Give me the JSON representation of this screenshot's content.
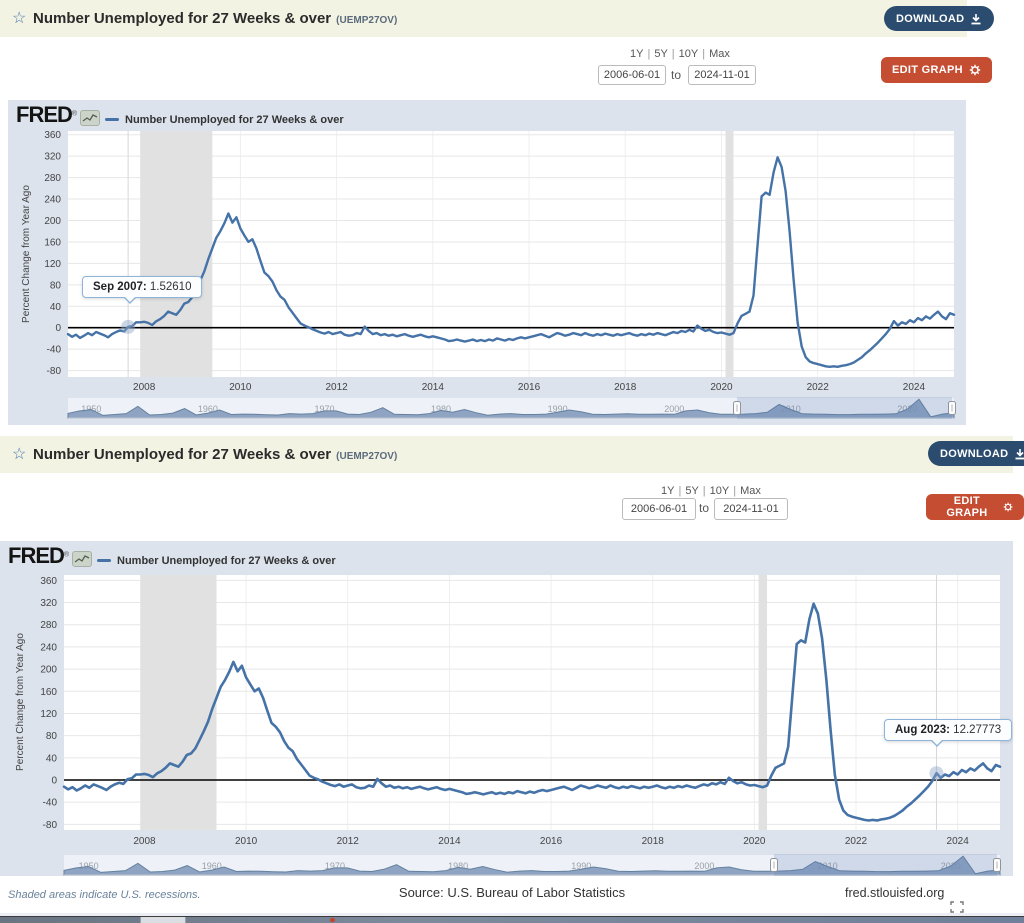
{
  "ui": {
    "sep": "|",
    "to_label": "to"
  },
  "panel1": {
    "title": "Number Unemployed for 27 Weeks & over",
    "code": "(UEMP27OV)",
    "download_label": "DOWNLOAD",
    "edit_label": "EDIT GRAPH",
    "range_links": [
      "1Y",
      "5Y",
      "10Y",
      "Max"
    ],
    "date_from": "2006-06-01",
    "date_to": "2024-11-01",
    "legend": "Number Unemployed for 27 Weeks & over",
    "ylabel": "Percent Change from Year Ago",
    "tooltip_label": "Sep 2007:",
    "tooltip_value": "1.52610"
  },
  "panel2": {
    "title": "Number Unemployed for 27 Weeks & over",
    "code": "(UEMP27OV)",
    "download_label": "DOWNLOAD",
    "edit_label": "EDIT GRAPH",
    "range_links": [
      "1Y",
      "5Y",
      "10Y",
      "Max"
    ],
    "date_from": "2006-06-01",
    "date_to": "2024-11-01",
    "legend": "Number Unemployed for 27 Weeks & over",
    "ylabel": "Percent Change from Year Ago",
    "tooltip_label": "Aug 2023:",
    "tooltip_value": "12.27773"
  },
  "footer": {
    "recession_note": "Shaded areas indicate U.S. recessions.",
    "source": "Source: U.S. Bureau of Labor Statistics",
    "site": "fred.stlouisfed.org"
  },
  "colors": {
    "series": "#4572a7",
    "header_bg": "#f3f3e3",
    "chart_bg": "#dce3ed",
    "download_btn": "#2b4c6f",
    "edit_btn": "#c44d32",
    "recession_band": "#e1e1e1"
  },
  "chart_data": {
    "type": "line",
    "title": "Number Unemployed for 27 Weeks & over",
    "ylabel": "Percent Change from Year Ago",
    "freq": "monthly",
    "x_start": "2006-06",
    "x_end": "2024-11",
    "ylim": [
      -80,
      360
    ],
    "y_ticks": [
      360,
      320,
      280,
      240,
      200,
      160,
      120,
      80,
      40,
      0,
      -40,
      -80
    ],
    "x_ticks": [
      2008,
      2010,
      2012,
      2014,
      2016,
      2018,
      2020,
      2022,
      2024
    ],
    "grid": true,
    "zero_line": true,
    "recessions": [
      [
        "2007-12",
        "2009-06"
      ],
      [
        "2020-02",
        "2020-04"
      ]
    ],
    "annotations": [
      {
        "x": "2007-09",
        "y": 1.5261,
        "label": "Sep 2007:",
        "value": "1.52610"
      },
      {
        "x": "2023-08",
        "y": 12.27773,
        "label": "Aug 2023:",
        "value": "12.27773"
      }
    ],
    "series": [
      {
        "name": "Number Unemployed for 27 Weeks & over",
        "values": [
          -12,
          -17,
          -13,
          -19,
          -15,
          -10,
          -14,
          -8,
          -11,
          -14,
          -18,
          -12,
          -8,
          -5,
          -7,
          1.5261,
          3,
          10,
          10,
          11,
          9,
          5,
          12,
          16,
          22,
          30,
          27,
          24,
          33,
          45,
          48,
          57,
          72,
          88,
          105,
          128,
          148,
          168,
          180,
          195,
          213,
          196,
          206,
          185,
          172,
          160,
          165,
          148,
          125,
          103,
          96,
          86,
          70,
          58,
          52,
          38,
          28,
          18,
          8,
          4,
          1,
          -3,
          -6,
          -9,
          -11,
          -8,
          -12,
          -10,
          -8,
          -13,
          -15,
          -14,
          -10,
          -12,
          2,
          -6,
          -12,
          -10,
          -14,
          -12,
          -15,
          -13,
          -16,
          -14,
          -12,
          -15,
          -17,
          -15,
          -13,
          -16,
          -18,
          -16,
          -18,
          -20,
          -22,
          -25,
          -24,
          -22,
          -24,
          -26,
          -24,
          -22,
          -25,
          -23,
          -25,
          -22,
          -24,
          -20,
          -22,
          -24,
          -21,
          -23,
          -20,
          -18,
          -20,
          -18,
          -16,
          -14,
          -12,
          -15,
          -18,
          -14,
          -10,
          -12,
          -15,
          -13,
          -10,
          -12,
          -14,
          -10,
          -13,
          -15,
          -12,
          -14,
          -11,
          -13,
          -15,
          -12,
          -14,
          -12,
          -10,
          -13,
          -15,
          -12,
          -14,
          -11,
          -13,
          -10,
          -12,
          -14,
          -11,
          -8,
          -10,
          -6,
          -8,
          -4,
          -7,
          4,
          -2,
          -6,
          -4,
          -8,
          -10,
          -9,
          -11,
          -13,
          -10,
          8,
          22,
          26,
          30,
          60,
          155,
          245,
          252,
          248,
          290,
          318,
          300,
          255,
          180,
          90,
          10,
          -35,
          -55,
          -63,
          -66,
          -68,
          -70,
          -72,
          -73,
          -72,
          -73,
          -71,
          -70,
          -68,
          -65,
          -60,
          -55,
          -48,
          -42,
          -35,
          -28,
          -20,
          -12,
          -2,
          12.27773,
          4,
          10,
          7,
          14,
          10,
          18,
          14,
          21,
          17,
          24,
          30,
          21,
          16,
          27,
          24
        ]
      }
    ],
    "minimap": {
      "x_start": 1948,
      "x_end": 2024,
      "labels": [
        "1950",
        "1960",
        "1970",
        "1980",
        "1990",
        "2000",
        "2010",
        "2020"
      ],
      "selection": [
        "2006-06",
        "2024-11"
      ],
      "values": [
        5,
        60,
        90,
        -40,
        -20,
        0,
        160,
        -30,
        -20,
        10,
        110,
        -30,
        10,
        80,
        -20,
        -10,
        -15,
        -25,
        -30,
        0,
        -10,
        0,
        60,
        60,
        -10,
        -20,
        30,
        130,
        -15,
        -20,
        -25,
        0,
        70,
        30,
        90,
        20,
        -35,
        -10,
        0,
        -20,
        -20,
        -10,
        30,
        80,
        40,
        -15,
        -20,
        -10,
        -5,
        -15,
        -15,
        -10,
        -15,
        60,
        80,
        20,
        -15,
        -15,
        -12,
        0,
        30,
        200,
        90,
        -5,
        -10,
        -15,
        -23,
        -22,
        -14,
        -13,
        -12,
        -5,
        100,
        318,
        -70,
        -10,
        20
      ]
    }
  }
}
